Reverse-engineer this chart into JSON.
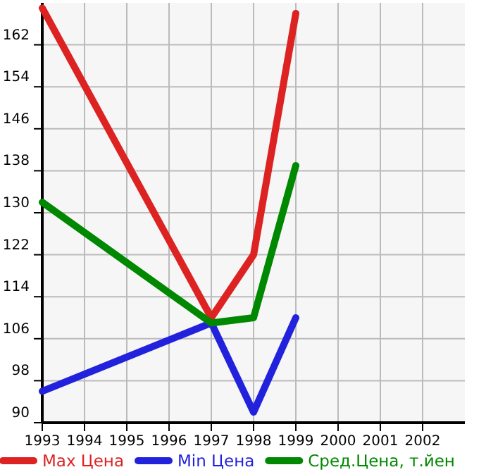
{
  "chart_data": {
    "type": "line",
    "x": [
      1993,
      1997,
      1998,
      1999
    ],
    "xlim": [
      1993,
      2003
    ],
    "xticks": [
      1993,
      1994,
      1995,
      1996,
      1997,
      1998,
      1999,
      2000,
      2001,
      2002
    ],
    "ylim": [
      90,
      170
    ],
    "yticks": [
      90,
      98,
      106,
      114,
      122,
      130,
      138,
      146,
      154,
      162
    ],
    "grid": true,
    "legend": "bottom",
    "marker": "none",
    "line_style": "solid",
    "series": [
      {
        "name": "Max Цена",
        "color": "#dd2222",
        "values": [
          169,
          110,
          122,
          168
        ]
      },
      {
        "name": "Min Цена",
        "color": "#2222dd",
        "values": [
          96,
          109,
          92,
          110
        ]
      },
      {
        "name": "Сред.Цена, т.йен",
        "color": "#008800",
        "values": [
          132,
          109,
          110,
          139
        ]
      }
    ]
  }
}
